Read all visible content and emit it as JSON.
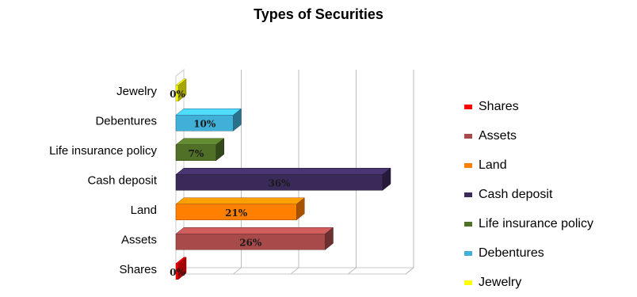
{
  "chart_data": {
    "type": "bar",
    "orientation": "horizontal",
    "title": "Types of Securities",
    "categories": [
      "Shares",
      "Assets",
      "Land",
      "Cash deposit",
      "Life insurance policy",
      "Debentures",
      "Jewelry"
    ],
    "values": [
      0,
      26,
      21,
      36,
      7,
      10,
      0
    ],
    "data_labels": [
      "0%",
      "26%",
      "21%",
      "36%",
      "7%",
      "10%",
      "0%"
    ],
    "colors": [
      "#ff0000",
      "#a84a4a",
      "#ff8000",
      "#3a2a5a",
      "#507028",
      "#40b0d8",
      "#ffff00"
    ],
    "xlim": [
      0,
      40
    ],
    "grid": true,
    "legend_position": "right",
    "legend": [
      {
        "label": "Shares",
        "color": "#ff0000"
      },
      {
        "label": "Assets",
        "color": "#a84a4a"
      },
      {
        "label": "Land",
        "color": "#ff8000"
      },
      {
        "label": "Cash deposit",
        "color": "#3a2a5a"
      },
      {
        "label": "Life insurance policy",
        "color": "#507028"
      },
      {
        "label": "Debentures",
        "color": "#40b0d8"
      },
      {
        "label": "Jewelry",
        "color": "#ffff00"
      }
    ]
  }
}
